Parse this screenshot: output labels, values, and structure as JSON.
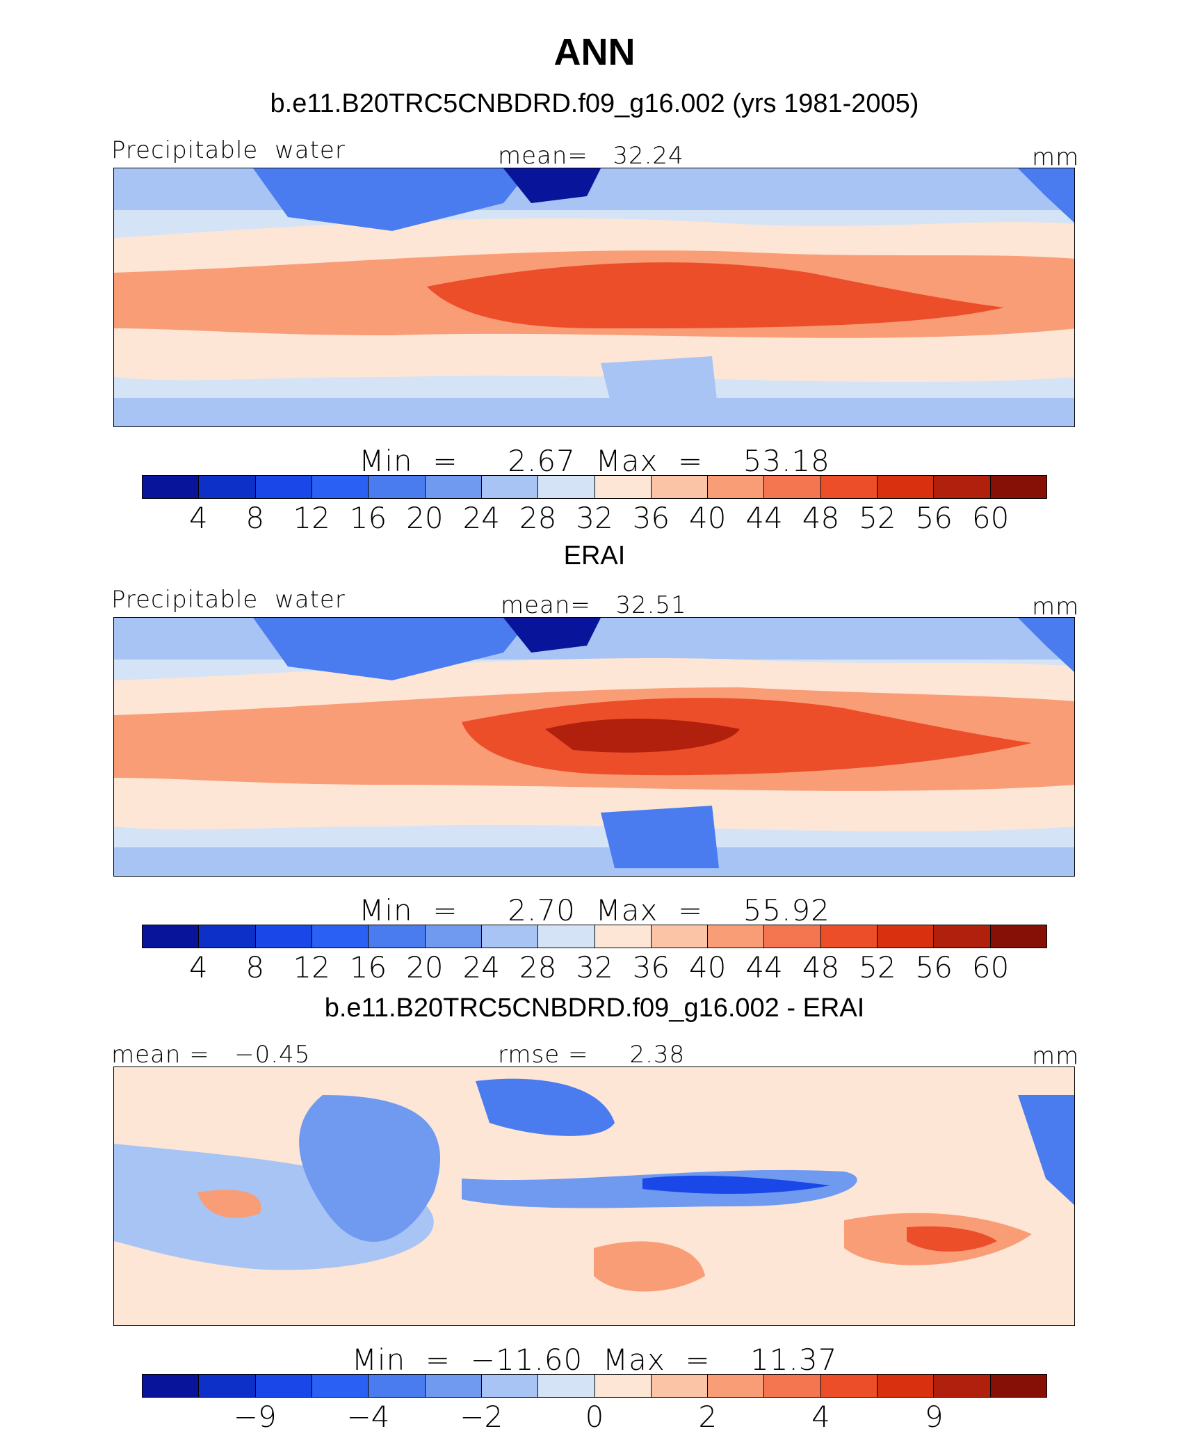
{
  "title": "ANN",
  "colors": [
    "#08149a",
    "#0c30c8",
    "#1a48e8",
    "#2a60f4",
    "#4a7cf0",
    "#6f9af0",
    "#a8c4f4",
    "#d4e4f6",
    "#fde6d6",
    "#fcc4a6",
    "#f99d76",
    "#f47650",
    "#ec4e2a",
    "#d93010",
    "#b0200c",
    "#861006"
  ],
  "panels": [
    {
      "title": "b.e11.B20TRC5CNBDRD.f09_g16.002 (yrs 1981-2005)",
      "left_label": "Precipitable  water",
      "center_label": "mean=   32.24",
      "unit": "mm",
      "min_max": "Min  =     2.67  Max  =    53.18",
      "tick_labels": [
        "4",
        "8",
        "12",
        "16",
        "20",
        "24",
        "28",
        "32",
        "36",
        "40",
        "44",
        "48",
        "52",
        "56",
        "60"
      ],
      "kind": "field"
    },
    {
      "title": "ERAI",
      "left_label": "Precipitable  water",
      "center_label": "mean=   32.51",
      "unit": "mm",
      "min_max": "Min  =     2.70  Max  =    55.92",
      "tick_labels": [
        "4",
        "8",
        "12",
        "16",
        "20",
        "24",
        "28",
        "32",
        "36",
        "40",
        "44",
        "48",
        "52",
        "56",
        "60"
      ],
      "kind": "field"
    },
    {
      "title": "b.e11.B20TRC5CNBDRD.f09_g16.002 - ERAI",
      "left_label": "mean =   −0.45",
      "center_label": "rmse =     2.38",
      "unit": "mm",
      "min_max": "Min  =  −11.60  Max  =    11.37",
      "tick_labels": [
        "−9",
        "−4",
        "−2",
        "0",
        "2",
        "4",
        "9"
      ],
      "kind": "diff"
    }
  ]
}
